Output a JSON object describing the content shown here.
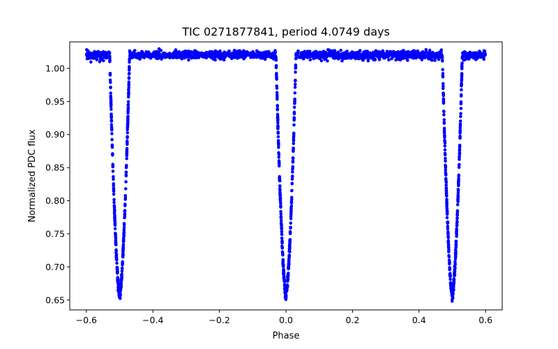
{
  "chart_data": {
    "type": "scatter",
    "title": "TIC 0271877841, period 4.0749 days",
    "xlabel": "Phase",
    "ylabel": "Normalized PDC flux",
    "xlim": [
      -0.65,
      0.65
    ],
    "ylim": [
      0.635,
      1.04
    ],
    "xticks": [
      -0.6,
      -0.4,
      -0.2,
      0.0,
      0.2,
      0.4,
      0.6
    ],
    "xtick_labels": [
      "−0.6",
      "−0.4",
      "−0.2",
      "0.0",
      "0.2",
      "0.4",
      "0.6"
    ],
    "yticks": [
      0.65,
      0.7,
      0.75,
      0.8,
      0.85,
      0.9,
      0.95,
      1.0
    ],
    "ytick_labels": [
      "0.65",
      "0.70",
      "0.75",
      "0.80",
      "0.85",
      "0.90",
      "0.95",
      "1.00"
    ],
    "grid": false,
    "series": [
      {
        "name": "PDC flux",
        "color": "#0000ff",
        "x_range": [
          -0.6,
          0.6
        ],
        "baseline_flux": 1.02,
        "scatter": 0.006,
        "eclipses": [
          {
            "center_phase": -0.5,
            "min_flux": 0.657,
            "half_width_phase": 0.03
          },
          {
            "center_phase": 0.0,
            "min_flux": 0.657,
            "half_width_phase": 0.03
          },
          {
            "center_phase": 0.5,
            "min_flux": 0.657,
            "half_width_phase": 0.03
          }
        ]
      }
    ]
  }
}
